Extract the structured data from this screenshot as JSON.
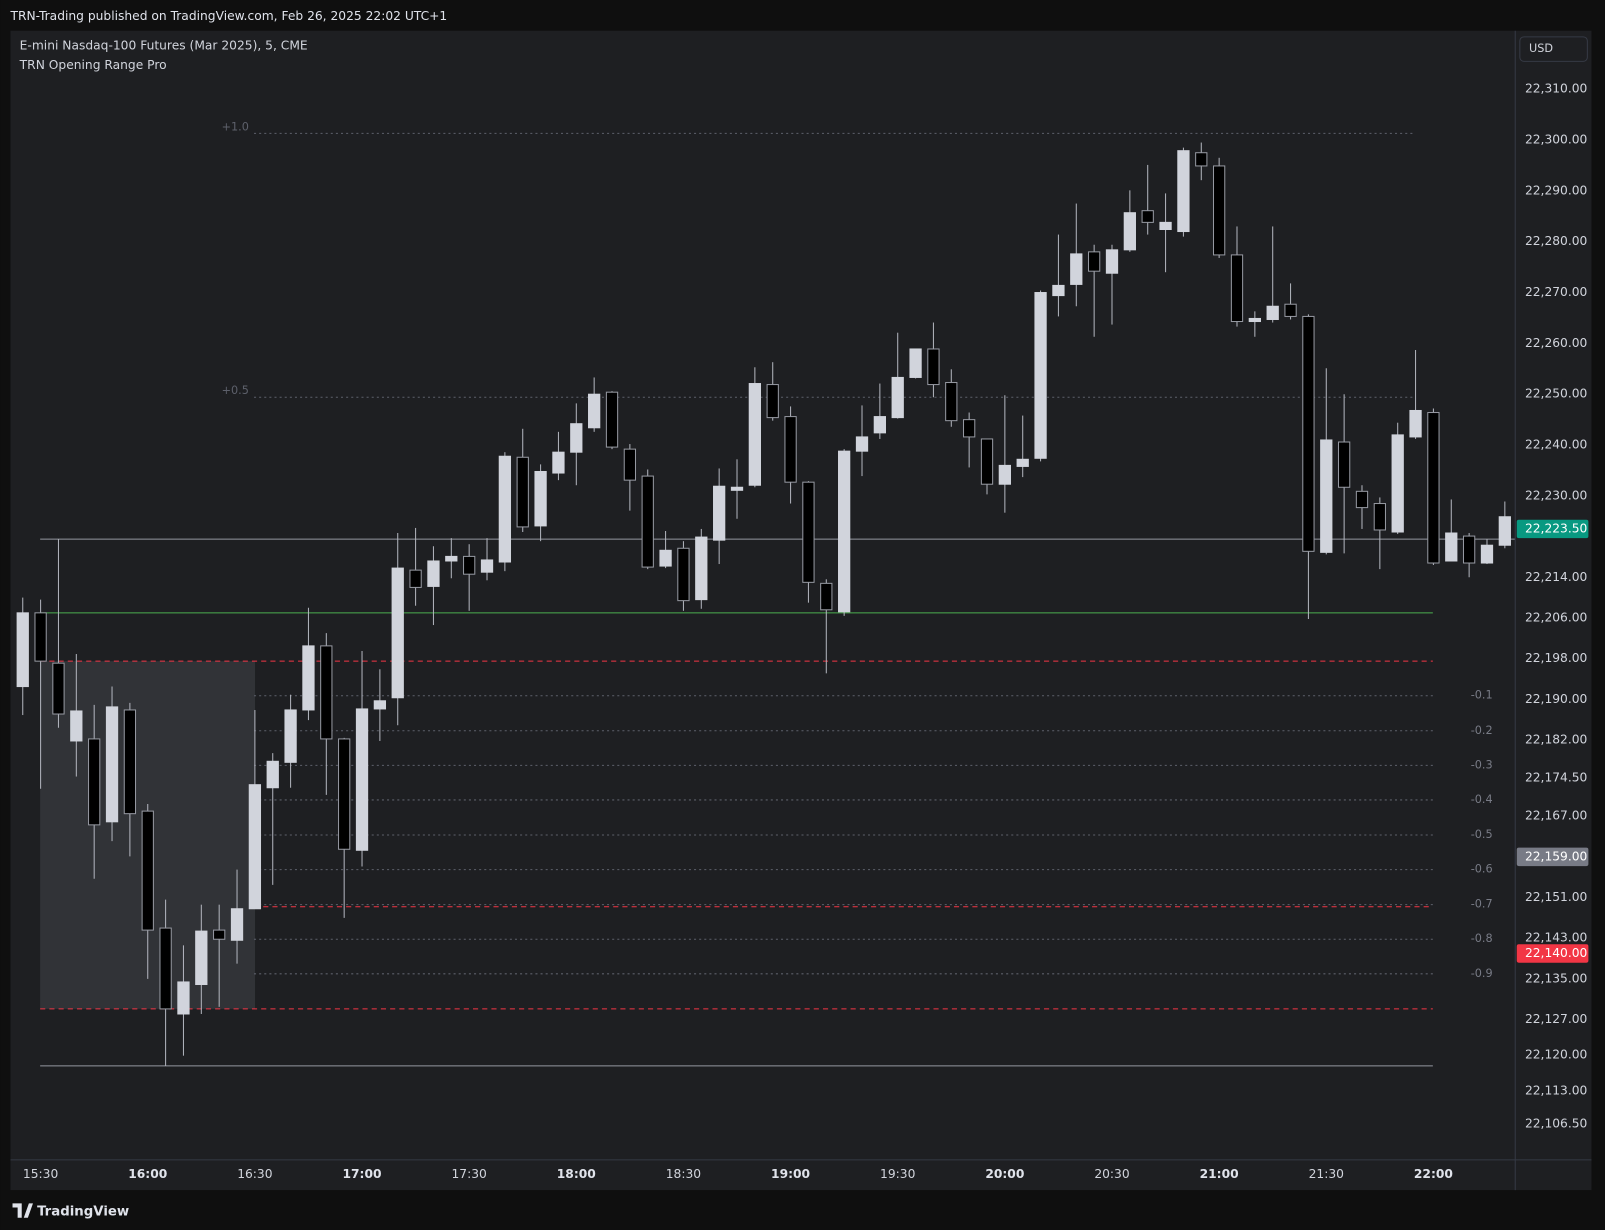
{
  "chart_data": {
    "type": "candlestick",
    "publisher": "TRN-Trading published on TradingView.com, Feb 26, 2025 22:02 UTC+1",
    "title": "E-mini Nasdaq-100 Futures (Mar 2025), 5, CME",
    "indicator": "TRN Opening Range Pro",
    "currency": "USD",
    "brand": "TradingView",
    "up_color": "#d1d4dc",
    "down_color": "#000000",
    "border_down": "#9598a1",
    "wick_color": "#b2b5be",
    "grid": false,
    "categories": [
      null,
      "15:30",
      null,
      null,
      null,
      null,
      null,
      "16:00",
      null,
      null,
      null,
      null,
      null,
      "16:30",
      null,
      null,
      null,
      null,
      null,
      "17:00",
      null,
      null,
      null,
      null,
      null,
      "17:30",
      null,
      null,
      null,
      null,
      null,
      "18:00",
      null,
      null,
      null,
      null,
      null,
      "18:30",
      null,
      null,
      null,
      null,
      null,
      "19:00",
      null,
      null,
      null,
      null,
      null,
      "19:30",
      null,
      null,
      null,
      null,
      null,
      "20:00",
      null,
      null,
      null,
      null,
      null,
      "20:30",
      null,
      null,
      null,
      null,
      null,
      "21:00",
      null,
      null,
      null,
      null,
      null,
      "21:30",
      null,
      null,
      null,
      null,
      null,
      "22:00",
      null,
      null,
      null,
      null
    ],
    "open": [
      22192.5,
      22207.0,
      22197.1,
      22181.8,
      22182.2,
      22165.9,
      22187.9,
      22168.0,
      22145.0,
      22128.1,
      22133.9,
      22144.6,
      22142.6,
      22148.8,
      22172.6,
      22177.6,
      22187.9,
      22200.5,
      22182.2,
      22160.3,
      22188.1,
      22190.3,
      22215.4,
      22212.2,
      22217.2,
      22218.1,
      22215.0,
      22217.0,
      22237.6,
      22224.1,
      22234.5,
      22238.6,
      22243.4,
      22250.4,
      22239.2,
      22233.9,
      22216.2,
      22219.7,
      22209.6,
      22221.3,
      22231.1,
      22232.1,
      22251.9,
      22245.6,
      22232.7,
      22212.8,
      22207.2,
      22238.8,
      22242.4,
      22245.4,
      22253.3,
      22258.9,
      22252.3,
      22245.0,
      22241.2,
      22232.3,
      22235.8,
      22237.4,
      22269.4,
      22271.6,
      22278.0,
      22273.8,
      22278.4,
      22286.1,
      22282.4,
      22282.0,
      22297.5,
      22294.9,
      22277.4,
      22264.3,
      22264.7,
      22267.7,
      22265.3,
      22218.9,
      22240.6,
      22230.9,
      22228.5,
      22222.9,
      22241.6,
      22246.4,
      22217.2,
      22222.1,
      22216.8,
      22220.3
    ],
    "high": [
      22210.0,
      22209.6,
      22221.5,
      22198.9,
      22188.9,
      22192.5,
      22189.3,
      22169.4,
      22150.6,
      22141.6,
      22149.6,
      22149.6,
      22156.5,
      22187.9,
      22179.4,
      22190.9,
      22208.0,
      22203.0,
      22182.4,
      22199.5,
      22195.9,
      22222.7,
      22223.7,
      22220.1,
      22221.7,
      22220.5,
      22221.7,
      22238.6,
      22243.2,
      22236.2,
      22242.6,
      22248.2,
      22253.3,
      22250.6,
      22240.2,
      22235.2,
      22223.1,
      22221.1,
      22223.5,
      22235.4,
      22237.2,
      22255.3,
      22256.3,
      22247.6,
      22232.9,
      22213.6,
      22239.2,
      22247.8,
      22252.1,
      22262.1,
      22258.9,
      22264.1,
      22254.9,
      22246.4,
      22241.2,
      22249.8,
      22245.8,
      22270.4,
      22281.4,
      22287.5,
      22279.4,
      22279.4,
      22290.1,
      22295.1,
      22289.5,
      22298.5,
      22299.5,
      22296.5,
      22283.0,
      22266.3,
      22283.0,
      22271.8,
      22265.7,
      22255.1,
      22250.0,
      22232.1,
      22229.7,
      22244.4,
      22258.7,
      22247.2,
      22229.3,
      22222.7,
      22221.5,
      22228.9
    ],
    "low": [
      22186.9,
      22172.4,
      22184.4,
      22174.8,
      22154.7,
      22162.1,
      22159.1,
      22135.0,
      22117.9,
      22119.9,
      22128.1,
      22129.5,
      22138.0,
      22148.8,
      22153.5,
      22172.6,
      22185.9,
      22171.2,
      22147.0,
      22157.1,
      22181.8,
      22184.9,
      22208.4,
      22204.6,
      22213.8,
      22207.4,
      22213.4,
      22215.2,
      22222.9,
      22221.1,
      22233.1,
      22232.1,
      22242.6,
      22239.2,
      22227.1,
      22215.6,
      22215.8,
      22207.4,
      22207.8,
      22216.6,
      22225.5,
      22231.7,
      22244.8,
      22228.5,
      22209.0,
      22195.1,
      22206.4,
      22233.9,
      22241.2,
      22245.2,
      22253.1,
      22249.4,
      22243.6,
      22235.6,
      22230.3,
      22226.7,
      22233.7,
      22236.8,
      22265.3,
      22267.3,
      22261.3,
      22263.7,
      22278.0,
      22281.4,
      22274.0,
      22281.0,
      22292.1,
      22276.8,
      22263.3,
      22261.3,
      22264.1,
      22264.7,
      22205.8,
      22218.5,
      22218.7,
      22223.5,
      22215.6,
      22222.5,
      22241.2,
      22216.4,
      22217.2,
      22214.0,
      22216.6,
      22219.7
    ],
    "close": [
      22207.0,
      22197.5,
      22187.1,
      22187.7,
      22165.3,
      22188.5,
      22167.5,
      22144.6,
      22129.1,
      22134.4,
      22144.4,
      22142.8,
      22148.8,
      22173.2,
      22177.8,
      22187.9,
      22200.5,
      22182.2,
      22160.5,
      22188.1,
      22189.7,
      22215.8,
      22212.0,
      22217.2,
      22218.1,
      22214.6,
      22217.4,
      22237.8,
      22223.9,
      22234.8,
      22238.6,
      22244.2,
      22250.0,
      22239.6,
      22233.1,
      22216.0,
      22219.3,
      22209.4,
      22221.9,
      22231.9,
      22231.7,
      22252.1,
      22245.4,
      22232.7,
      22213.0,
      22207.6,
      22238.8,
      22241.6,
      22245.6,
      22253.3,
      22258.9,
      22251.9,
      22244.8,
      22241.6,
      22232.3,
      22236.0,
      22237.2,
      22270.0,
      22271.4,
      22277.6,
      22274.2,
      22278.4,
      22285.7,
      22283.8,
      22283.8,
      22297.9,
      22294.9,
      22277.4,
      22264.3,
      22264.9,
      22267.3,
      22265.3,
      22219.1,
      22241.0,
      22231.7,
      22227.7,
      22223.3,
      22242.0,
      22246.8,
      22216.8,
      22222.7,
      22216.8,
      22220.3,
      22225.9
    ],
    "ylim": [
      22099.5,
      22321.5
    ],
    "yticks": [
      {
        "value": 22310,
        "label": "22,310.00"
      },
      {
        "value": 22300,
        "label": "22,300.00"
      },
      {
        "value": 22290,
        "label": "22,290.00"
      },
      {
        "value": 22280,
        "label": "22,280.00"
      },
      {
        "value": 22270,
        "label": "22,270.00"
      },
      {
        "value": 22260,
        "label": "22,260.00"
      },
      {
        "value": 22250,
        "label": "22,250.00"
      },
      {
        "value": 22240,
        "label": "22,240.00"
      },
      {
        "value": 22230,
        "label": "22,230.00"
      },
      {
        "value": 22214,
        "label": "22,214.00"
      },
      {
        "value": 22206,
        "label": "22,206.00"
      },
      {
        "value": 22198,
        "label": "22,198.00"
      },
      {
        "value": 22190,
        "label": "22,190.00"
      },
      {
        "value": 22182,
        "label": "22,182.00"
      },
      {
        "value": 22174.5,
        "label": "22,174.50"
      },
      {
        "value": 22167,
        "label": "22,167.00"
      },
      {
        "value": 22151,
        "label": "22,151.00"
      },
      {
        "value": 22143,
        "label": "22,143.00"
      },
      {
        "value": 22135,
        "label": "22,135.00"
      },
      {
        "value": 22127,
        "label": "22,127.00"
      },
      {
        "value": 22120,
        "label": "22,120.00"
      },
      {
        "value": 22113,
        "label": "22,113.00"
      },
      {
        "value": 22106.5,
        "label": "22,106.50"
      }
    ],
    "price_markers": [
      {
        "value": 22223.5,
        "label": "22,223.50",
        "color": "#089981"
      },
      {
        "value": 22159,
        "label": "22,159.00",
        "color": "#787b86"
      },
      {
        "value": 22140,
        "label": "22,140.00",
        "color": "#f23645"
      }
    ],
    "opening_range": {
      "high": 22197.5,
      "low": 22129.1,
      "color": "#787b86"
    },
    "lines": [
      {
        "value": 22221.5,
        "color": "#9598a1",
        "style": "solid"
      },
      {
        "value": 22207.0,
        "color": "#4caf50",
        "style": "solid"
      },
      {
        "value": 22197.5,
        "color": "#f23645",
        "style": "dashed"
      },
      {
        "value": 22129.1,
        "color": "#f23645",
        "style": "dashed"
      },
      {
        "value": 22149.2,
        "color": "#f23645",
        "style": "dashed"
      },
      {
        "value": 22117.9,
        "color": "#9598a1",
        "style": "solid"
      }
    ],
    "levels": [
      {
        "label": "+1.0",
        "value": 22301.3
      },
      {
        "label": "+0.5",
        "value": 22249.4
      },
      {
        "label": "-0.1",
        "value": 22190.7
      },
      {
        "label": "-0.2",
        "value": 22183.8
      },
      {
        "label": "-0.3",
        "value": 22177.0
      },
      {
        "label": "-0.4",
        "value": 22170.2
      },
      {
        "label": "-0.5",
        "value": 22163.3
      },
      {
        "label": "-0.6",
        "value": 22156.5
      },
      {
        "label": "-0.7",
        "value": 22149.6
      },
      {
        "label": "-0.8",
        "value": 22142.8
      },
      {
        "label": "-0.9",
        "value": 22136.0
      }
    ],
    "level_color": "#5d606b"
  }
}
